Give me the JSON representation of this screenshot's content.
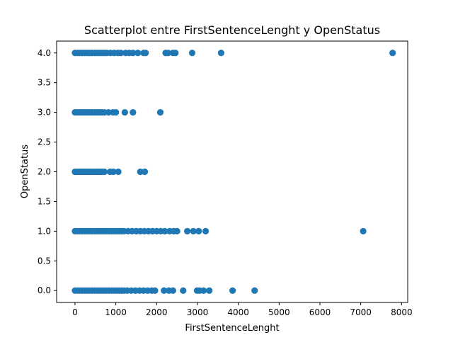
{
  "chart_data": {
    "type": "scatter",
    "title": "Scatterplot entre FirstSentenceLenght y OpenStatus",
    "xlabel": "FirstSentenceLenght",
    "ylabel": "OpenStatus",
    "xlim": [
      -450,
      8150
    ],
    "ylim": [
      -0.2,
      4.2
    ],
    "x_ticks": [
      "0",
      "1000",
      "2000",
      "3000",
      "4000",
      "5000",
      "6000",
      "7000",
      "8000"
    ],
    "y_ticks": [
      "0.0",
      "0.5",
      "1.0",
      "1.5",
      "2.0",
      "2.5",
      "3.0",
      "3.5",
      "4.0"
    ],
    "grid": false,
    "legend": "none",
    "marker_color": "#1f77b4",
    "points": [
      {
        "x": 0,
        "y": 4
      },
      {
        "x": 60,
        "y": 4
      },
      {
        "x": 120,
        "y": 4
      },
      {
        "x": 180,
        "y": 4
      },
      {
        "x": 240,
        "y": 4
      },
      {
        "x": 300,
        "y": 4
      },
      {
        "x": 360,
        "y": 4
      },
      {
        "x": 420,
        "y": 4
      },
      {
        "x": 480,
        "y": 4
      },
      {
        "x": 540,
        "y": 4
      },
      {
        "x": 600,
        "y": 4
      },
      {
        "x": 660,
        "y": 4
      },
      {
        "x": 720,
        "y": 4
      },
      {
        "x": 780,
        "y": 4
      },
      {
        "x": 870,
        "y": 4
      },
      {
        "x": 960,
        "y": 4
      },
      {
        "x": 1050,
        "y": 4
      },
      {
        "x": 1120,
        "y": 4
      },
      {
        "x": 1240,
        "y": 4
      },
      {
        "x": 1330,
        "y": 4
      },
      {
        "x": 1420,
        "y": 4
      },
      {
        "x": 1540,
        "y": 4
      },
      {
        "x": 1680,
        "y": 4
      },
      {
        "x": 1730,
        "y": 4
      },
      {
        "x": 2220,
        "y": 4
      },
      {
        "x": 2280,
        "y": 4
      },
      {
        "x": 2400,
        "y": 4
      },
      {
        "x": 2460,
        "y": 4
      },
      {
        "x": 2870,
        "y": 4
      },
      {
        "x": 3580,
        "y": 4
      },
      {
        "x": 7780,
        "y": 4
      },
      {
        "x": 0,
        "y": 3
      },
      {
        "x": 60,
        "y": 3
      },
      {
        "x": 120,
        "y": 3
      },
      {
        "x": 180,
        "y": 3
      },
      {
        "x": 240,
        "y": 3
      },
      {
        "x": 300,
        "y": 3
      },
      {
        "x": 360,
        "y": 3
      },
      {
        "x": 420,
        "y": 3
      },
      {
        "x": 480,
        "y": 3
      },
      {
        "x": 540,
        "y": 3
      },
      {
        "x": 600,
        "y": 3
      },
      {
        "x": 660,
        "y": 3
      },
      {
        "x": 720,
        "y": 3
      },
      {
        "x": 820,
        "y": 3
      },
      {
        "x": 930,
        "y": 3
      },
      {
        "x": 1000,
        "y": 3
      },
      {
        "x": 1220,
        "y": 3
      },
      {
        "x": 1420,
        "y": 3
      },
      {
        "x": 2090,
        "y": 3
      },
      {
        "x": 0,
        "y": 2
      },
      {
        "x": 60,
        "y": 2
      },
      {
        "x": 120,
        "y": 2
      },
      {
        "x": 180,
        "y": 2
      },
      {
        "x": 240,
        "y": 2
      },
      {
        "x": 300,
        "y": 2
      },
      {
        "x": 360,
        "y": 2
      },
      {
        "x": 420,
        "y": 2
      },
      {
        "x": 480,
        "y": 2
      },
      {
        "x": 540,
        "y": 2
      },
      {
        "x": 600,
        "y": 2
      },
      {
        "x": 660,
        "y": 2
      },
      {
        "x": 720,
        "y": 2
      },
      {
        "x": 860,
        "y": 2
      },
      {
        "x": 940,
        "y": 2
      },
      {
        "x": 1060,
        "y": 2
      },
      {
        "x": 1600,
        "y": 2
      },
      {
        "x": 1710,
        "y": 2
      },
      {
        "x": 0,
        "y": 1
      },
      {
        "x": 60,
        "y": 1
      },
      {
        "x": 120,
        "y": 1
      },
      {
        "x": 180,
        "y": 1
      },
      {
        "x": 240,
        "y": 1
      },
      {
        "x": 300,
        "y": 1
      },
      {
        "x": 360,
        "y": 1
      },
      {
        "x": 420,
        "y": 1
      },
      {
        "x": 480,
        "y": 1
      },
      {
        "x": 540,
        "y": 1
      },
      {
        "x": 600,
        "y": 1
      },
      {
        "x": 660,
        "y": 1
      },
      {
        "x": 720,
        "y": 1
      },
      {
        "x": 780,
        "y": 1
      },
      {
        "x": 840,
        "y": 1
      },
      {
        "x": 900,
        "y": 1
      },
      {
        "x": 960,
        "y": 1
      },
      {
        "x": 1020,
        "y": 1
      },
      {
        "x": 1080,
        "y": 1
      },
      {
        "x": 1140,
        "y": 1
      },
      {
        "x": 1200,
        "y": 1
      },
      {
        "x": 1300,
        "y": 1
      },
      {
        "x": 1400,
        "y": 1
      },
      {
        "x": 1500,
        "y": 1
      },
      {
        "x": 1600,
        "y": 1
      },
      {
        "x": 1700,
        "y": 1
      },
      {
        "x": 1800,
        "y": 1
      },
      {
        "x": 1900,
        "y": 1
      },
      {
        "x": 2000,
        "y": 1
      },
      {
        "x": 2100,
        "y": 1
      },
      {
        "x": 2200,
        "y": 1
      },
      {
        "x": 2320,
        "y": 1
      },
      {
        "x": 2420,
        "y": 1
      },
      {
        "x": 2500,
        "y": 1
      },
      {
        "x": 2750,
        "y": 1
      },
      {
        "x": 2900,
        "y": 1
      },
      {
        "x": 3030,
        "y": 1
      },
      {
        "x": 3200,
        "y": 1
      },
      {
        "x": 7060,
        "y": 1
      },
      {
        "x": 0,
        "y": 0
      },
      {
        "x": 60,
        "y": 0
      },
      {
        "x": 120,
        "y": 0
      },
      {
        "x": 180,
        "y": 0
      },
      {
        "x": 240,
        "y": 0
      },
      {
        "x": 300,
        "y": 0
      },
      {
        "x": 360,
        "y": 0
      },
      {
        "x": 420,
        "y": 0
      },
      {
        "x": 480,
        "y": 0
      },
      {
        "x": 540,
        "y": 0
      },
      {
        "x": 600,
        "y": 0
      },
      {
        "x": 660,
        "y": 0
      },
      {
        "x": 720,
        "y": 0
      },
      {
        "x": 780,
        "y": 0
      },
      {
        "x": 840,
        "y": 0
      },
      {
        "x": 900,
        "y": 0
      },
      {
        "x": 960,
        "y": 0
      },
      {
        "x": 1020,
        "y": 0
      },
      {
        "x": 1080,
        "y": 0
      },
      {
        "x": 1140,
        "y": 0
      },
      {
        "x": 1200,
        "y": 0
      },
      {
        "x": 1280,
        "y": 0
      },
      {
        "x": 1380,
        "y": 0
      },
      {
        "x": 1480,
        "y": 0
      },
      {
        "x": 1580,
        "y": 0
      },
      {
        "x": 1680,
        "y": 0
      },
      {
        "x": 1780,
        "y": 0
      },
      {
        "x": 1880,
        "y": 0
      },
      {
        "x": 1960,
        "y": 0
      },
      {
        "x": 2180,
        "y": 0
      },
      {
        "x": 2300,
        "y": 0
      },
      {
        "x": 2400,
        "y": 0
      },
      {
        "x": 2650,
        "y": 0
      },
      {
        "x": 2990,
        "y": 0
      },
      {
        "x": 3050,
        "y": 0
      },
      {
        "x": 3150,
        "y": 0
      },
      {
        "x": 3290,
        "y": 0
      },
      {
        "x": 3860,
        "y": 0
      },
      {
        "x": 4400,
        "y": 0
      }
    ]
  }
}
